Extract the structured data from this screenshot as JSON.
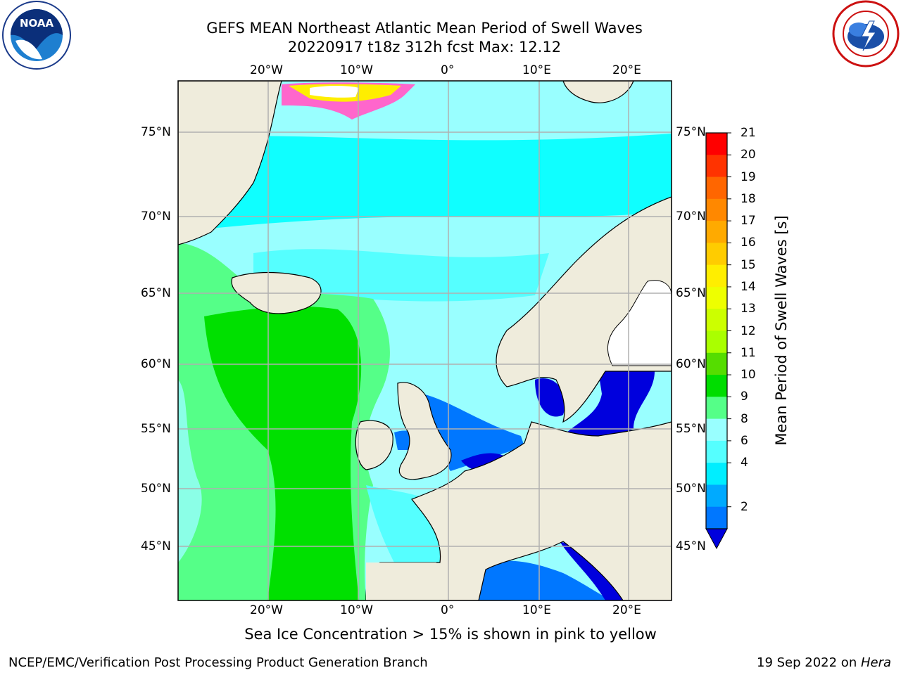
{
  "title_line1": "GEFS MEAN Northeast Atlantic Mean Period of Swell Waves",
  "title_line2": "20220917 t18z 312h fcst   Max: 12.12",
  "note": "Sea Ice Concentration > 15% is shown in pink to yellow",
  "footer_left": "NCEP/EMC/Verification Post Processing Product Generation Branch",
  "footer_date": "19 Sep 2022 on ",
  "footer_machine": "Hera",
  "logos": {
    "left": "noaa-logo",
    "right": "nws-logo"
  },
  "map": {
    "lon_ticks": [
      "20°W",
      "10°W",
      "0°",
      "10°E",
      "20°E"
    ],
    "lat_ticks": [
      "75°N",
      "70°N",
      "65°N",
      "60°N",
      "55°N",
      "50°N",
      "45°N"
    ],
    "land_color": "#efecdc",
    "ocean_dominant_colors": [
      "#00ffff",
      "#99ffff",
      "#55ff88",
      "#00e000",
      "#0077ff",
      "#0000dd"
    ]
  },
  "colorbar": {
    "label": "Mean Period of Swell Waves [s]",
    "ticks": [
      "21",
      "20",
      "19",
      "18",
      "17",
      "16",
      "15",
      "14",
      "13",
      "12",
      "11",
      "10",
      "9",
      "8",
      "6",
      "4",
      "2"
    ],
    "colors": [
      "#ff0000",
      "#ff3300",
      "#ff6600",
      "#ff8800",
      "#ffaa00",
      "#ffcc00",
      "#ffee00",
      "#eeff00",
      "#ccff00",
      "#aaff00",
      "#55dd00",
      "#00dd00",
      "#55ff88",
      "#99ffff",
      "#55ffff",
      "#00eeff",
      "#00aaff",
      "#0077ff"
    ],
    "extend_color": "#0000dd"
  }
}
